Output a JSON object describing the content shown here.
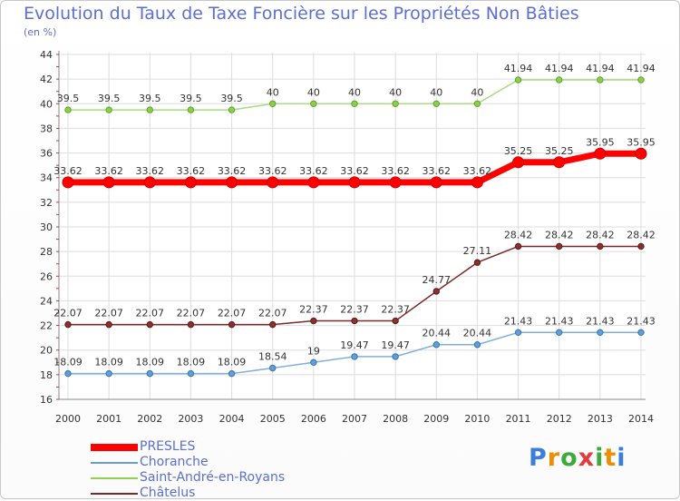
{
  "chart_data": {
    "type": "line",
    "title": "Evolution du Taux de Taxe Foncière sur les Propriétés Non Bâties",
    "unit": "(en %)",
    "x": [
      "2000",
      "2001",
      "2002",
      "2003",
      "2004",
      "2005",
      "2006",
      "2007",
      "2008",
      "2009",
      "2010",
      "2011",
      "2012",
      "2013",
      "2014"
    ],
    "ylim": [
      16,
      44
    ],
    "yticks": [
      16,
      18,
      20,
      22,
      24,
      26,
      28,
      30,
      32,
      34,
      36,
      38,
      40,
      42,
      44
    ],
    "grid": true,
    "legend_position": "bottom-left",
    "series": [
      {
        "name": "Saint-André-en-Royans",
        "color": "#92d050",
        "values": [
          39.5,
          39.5,
          39.5,
          39.5,
          39.5,
          40,
          40,
          40,
          40,
          40,
          40,
          41.94,
          41.94,
          41.94,
          41.94
        ],
        "labels": [
          "39.5",
          "39.5",
          "39.5",
          "39.5",
          "39.5",
          "40",
          "40",
          "40",
          "40",
          "40",
          "40",
          "41.94",
          "41.94",
          "41.94",
          "41.94"
        ]
      },
      {
        "name": "PRESLES",
        "color": "#ff0000",
        "values": [
          33.62,
          33.62,
          33.62,
          33.62,
          33.62,
          33.62,
          33.62,
          33.62,
          33.62,
          33.62,
          33.62,
          35.25,
          35.25,
          35.95,
          35.95
        ],
        "labels": [
          "33.62",
          "33.62",
          "33.62",
          "33.62",
          "33.62",
          "33.62",
          "33.62",
          "33.62",
          "33.62",
          "33.62",
          "33.62",
          "35.25",
          "35.25",
          "35.95",
          "35.95"
        ]
      },
      {
        "name": "Châtelus",
        "color": "#7b2a2a",
        "values": [
          22.07,
          22.07,
          22.07,
          22.07,
          22.07,
          22.07,
          22.37,
          22.37,
          22.37,
          24.77,
          27.11,
          28.42,
          28.42,
          28.42,
          28.42
        ],
        "labels": [
          "22.07",
          "22.07",
          "22.07",
          "22.07",
          "22.07",
          "22.07",
          "22.37",
          "22.37",
          "22.37",
          "24.77",
          "27.11",
          "28.42",
          "28.42",
          "28.42",
          "28.42"
        ]
      },
      {
        "name": "Choranche",
        "color": "#6a9ed0",
        "values": [
          18.09,
          18.09,
          18.09,
          18.09,
          18.09,
          18.54,
          19,
          19.47,
          19.47,
          20.44,
          20.44,
          21.43,
          21.43,
          21.43,
          21.43
        ],
        "labels": [
          "18.09",
          "18.09",
          "18.09",
          "18.09",
          "18.09",
          "18.54",
          "19",
          "19.47",
          "19.47",
          "20.44",
          "20.44",
          "21.43",
          "21.43",
          "21.43",
          "21.43"
        ]
      }
    ],
    "legend": [
      "PRESLES",
      "Choranche",
      "Saint-André-en-Royans",
      "Châtelus"
    ]
  },
  "logo": {
    "letters": [
      "P",
      "r",
      "o",
      "x",
      "i",
      "t",
      "i"
    ],
    "colors": [
      "#3c7dd9",
      "#f08c00",
      "#3cab3c",
      "#e23b3b",
      "#3cab3c",
      "#f08c00",
      "#3c7dd9"
    ]
  }
}
